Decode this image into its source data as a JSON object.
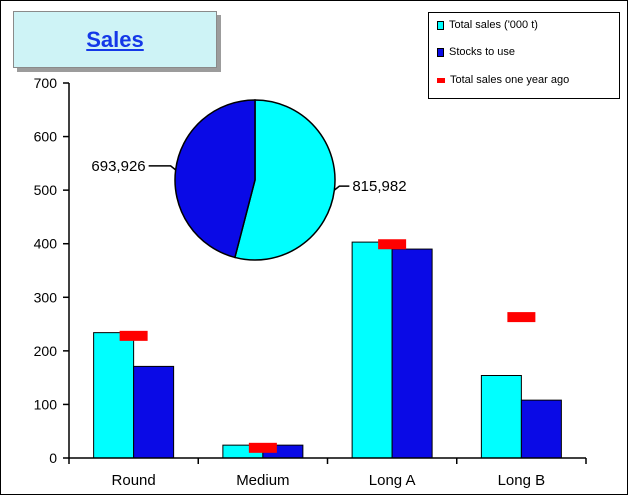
{
  "chart_data": [
    {
      "type": "bar",
      "title": "Sales",
      "categories": [
        "Round",
        "Medium",
        "Long A",
        "Long B"
      ],
      "series": [
        {
          "name": "Total sales ('000 t)",
          "kind": "bar",
          "color": "#00ffff",
          "values": [
            234,
            24,
            403,
            154
          ]
        },
        {
          "name": "Stocks to use",
          "kind": "bar",
          "color": "#0a0ae6",
          "values": [
            171,
            24,
            390,
            108
          ]
        },
        {
          "name": "Total sales one year ago",
          "kind": "marker",
          "color": "#ff0000",
          "values": [
            228,
            19,
            399,
            263
          ]
        }
      ],
      "ylim": [
        0,
        700
      ],
      "yticks": [
        "0",
        "100",
        "200",
        "300",
        "400",
        "500",
        "600",
        "700"
      ],
      "xlabel": "",
      "ylabel": "",
      "grid": false,
      "legend": "top-right"
    },
    {
      "type": "pie",
      "slices": [
        {
          "value": 815982,
          "label": "815,982",
          "color": "#00ffff"
        },
        {
          "value": 693926,
          "label": "693,926",
          "color": "#0a0ae6"
        }
      ]
    }
  ]
}
